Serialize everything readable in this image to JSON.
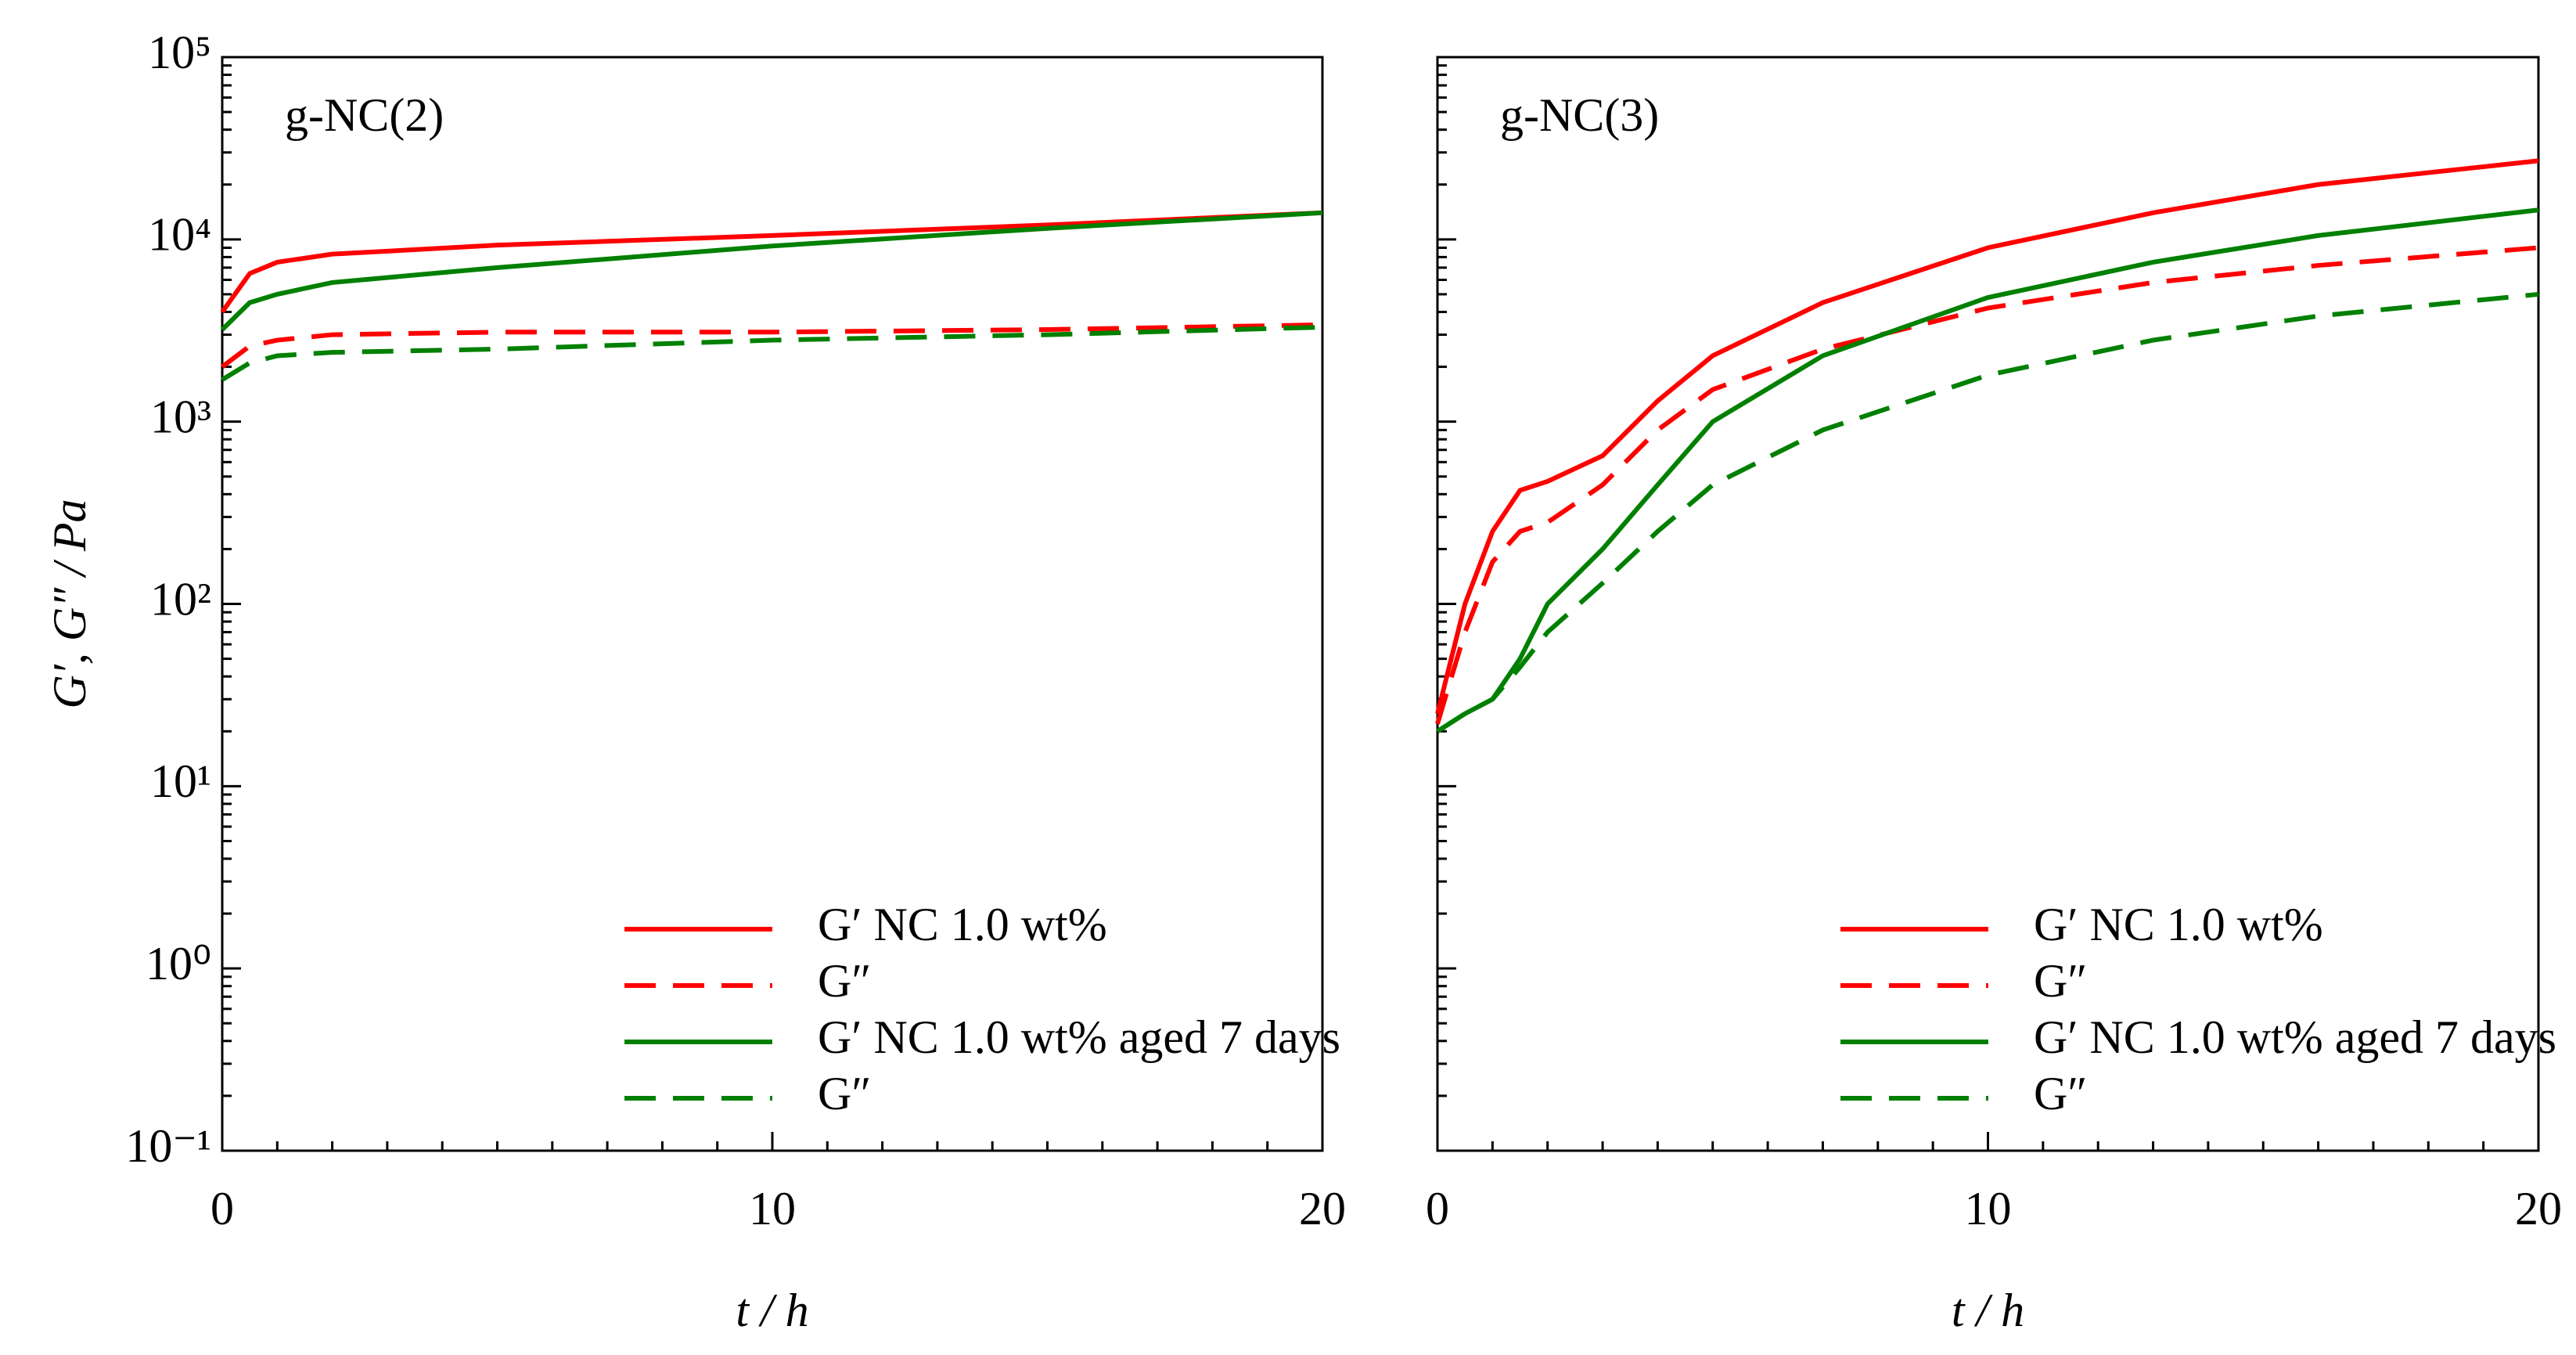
{
  "chart_data": [
    {
      "type": "line",
      "annotation": "g-NC(2)",
      "ylabel": "G′, G″ / Pa",
      "xlabel": "t / h",
      "log_y": true,
      "legend": "lower right",
      "grid": false,
      "x": [
        0,
        0.5,
        1,
        2,
        5,
        10,
        15,
        20
      ],
      "xlim": [
        0,
        20
      ],
      "xticks": [
        0,
        10,
        20
      ],
      "ylim": [
        0.1,
        100000
      ],
      "yticks": [
        {
          "value": 0.1,
          "label": "10⁻¹"
        },
        {
          "value": 1,
          "label": "10⁰"
        },
        {
          "value": 10,
          "label": "10¹"
        },
        {
          "value": 100,
          "label": "10²"
        },
        {
          "value": 1000,
          "label": "10³"
        },
        {
          "value": 10000,
          "label": "10⁴"
        },
        {
          "value": 100000,
          "label": "10⁵"
        }
      ],
      "series": [
        {
          "name": "G′ NC 1.0 wt%",
          "color": "#ff0000",
          "dash": false,
          "values": [
            4000,
            6500,
            7500,
            8300,
            9300,
            10500,
            12000,
            14000
          ]
        },
        {
          "name": "G″",
          "color": "#ff0000",
          "dash": true,
          "values": [
            2000,
            2600,
            2800,
            3000,
            3100,
            3100,
            3200,
            3400
          ]
        },
        {
          "name": "G′ NC 1.0 wt% aged 7 days",
          "color": "#008000",
          "dash": false,
          "values": [
            3200,
            4500,
            5000,
            5800,
            7000,
            9200,
            11500,
            14000
          ]
        },
        {
          "name": "G″",
          "color": "#008000",
          "dash": true,
          "values": [
            1700,
            2100,
            2300,
            2400,
            2500,
            2800,
            3000,
            3300
          ]
        }
      ]
    },
    {
      "type": "line",
      "annotation": "g-NC(3)",
      "xlabel": "t / h",
      "log_y": true,
      "legend": "lower right",
      "grid": false,
      "x": [
        0,
        0.5,
        1,
        1.5,
        2,
        3,
        4,
        5,
        7,
        10,
        13,
        16,
        20
      ],
      "xlim": [
        0,
        20
      ],
      "xticks": [
        0,
        10,
        20
      ],
      "ylim": [
        0.1,
        100000
      ],
      "yticks": [
        0.1,
        1,
        10,
        100,
        1000,
        10000,
        100000
      ],
      "series": [
        {
          "name": "G′ NC 1.0 wt%",
          "color": "#ff0000",
          "dash": false,
          "values": [
            25,
            100,
            250,
            420,
            470,
            650,
            1300,
            2300,
            4500,
            9000,
            14000,
            20000,
            27000
          ]
        },
        {
          "name": "G″",
          "color": "#ff0000",
          "dash": true,
          "values": [
            22,
            70,
            170,
            250,
            280,
            450,
            900,
            1500,
            2500,
            4200,
            5800,
            7200,
            9000
          ]
        },
        {
          "name": "G′ NC 1.0 wt% aged 7 days",
          "color": "#008000",
          "dash": false,
          "values": [
            20,
            25,
            30,
            50,
            100,
            200,
            450,
            1000,
            2300,
            4800,
            7500,
            10500,
            14500
          ]
        },
        {
          "name": "G″",
          "color": "#008000",
          "dash": true,
          "values": [
            20,
            25,
            30,
            45,
            70,
            130,
            250,
            450,
            900,
            1800,
            2800,
            3800,
            5000
          ]
        }
      ]
    }
  ]
}
